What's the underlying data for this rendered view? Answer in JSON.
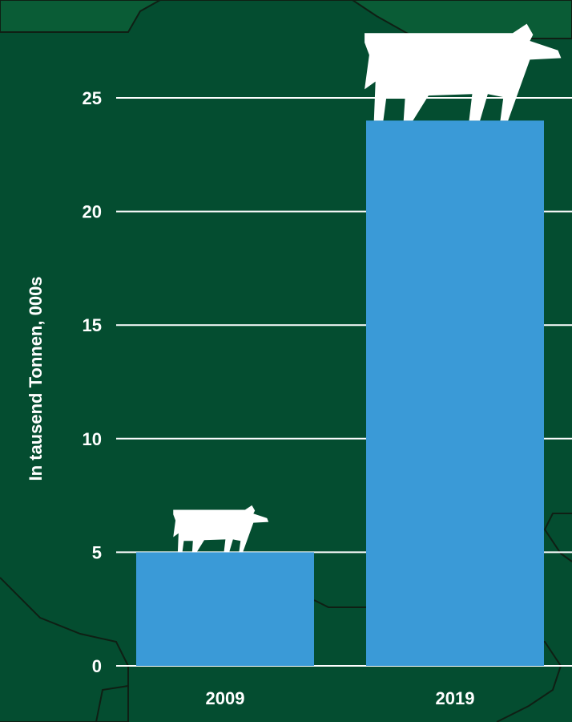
{
  "chart_data": {
    "type": "bar",
    "categories": [
      "2009",
      "2019"
    ],
    "values": [
      5,
      24
    ],
    "ylabel": "In tausend Tonnen, 000s",
    "yticks": [
      0,
      5,
      10,
      15,
      20,
      25
    ],
    "ylim": [
      0,
      25
    ],
    "grid": true,
    "icon": "cow-icon"
  },
  "colors": {
    "background": "#044d30",
    "map_shape": "#0a5c36",
    "map_border": "#0f1f14",
    "bar": "#3a9ad7",
    "grid": "#ffffff",
    "text": "#ffffff",
    "icon": "#ffffff"
  }
}
